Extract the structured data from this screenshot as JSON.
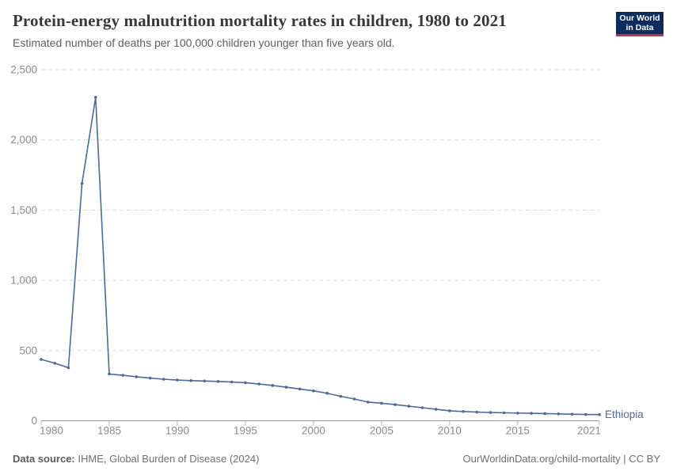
{
  "header": {
    "title": "Protein-energy malnutrition mortality rates in children, 1980 to 2021",
    "subtitle": "Estimated number of deaths per 100,000 children younger than five years old.",
    "logo": {
      "line1": "Our World",
      "line2": "in Data",
      "bg_color": "#0d2c5c",
      "accent_color": "#c0343c"
    }
  },
  "chart_data": {
    "type": "line",
    "title": "Protein-energy malnutrition mortality rates in children, 1980 to 2021",
    "subtitle": "Estimated number of deaths per 100,000 children younger than five years old.",
    "xlabel": "",
    "ylabel": "",
    "xlim": [
      1980,
      2021
    ],
    "ylim": [
      0,
      2500
    ],
    "grid": "horizontal-dashed",
    "legend_position": "end-of-line-label",
    "xticks": [
      1980,
      1985,
      1990,
      1995,
      2000,
      2005,
      2010,
      2015,
      2021
    ],
    "yticks": [
      0,
      500,
      1000,
      1500,
      2000,
      2500
    ],
    "ytick_labels": [
      "0",
      "500",
      "1,000",
      "1,500",
      "2,000",
      "2,500"
    ],
    "series": [
      {
        "name": "Ethiopia",
        "color": "#4c6a9c",
        "x": [
          1980,
          1981,
          1982,
          1983,
          1984,
          1985,
          1986,
          1987,
          1988,
          1989,
          1990,
          1991,
          1992,
          1993,
          1994,
          1995,
          1996,
          1997,
          1998,
          1999,
          2000,
          2001,
          2002,
          2003,
          2004,
          2005,
          2006,
          2007,
          2008,
          2009,
          2010,
          2011,
          2012,
          2013,
          2014,
          2015,
          2016,
          2017,
          2018,
          2019,
          2020,
          2021
        ],
        "values": [
          437,
          410,
          378,
          1690,
          2303,
          333,
          324,
          313,
          304,
          296,
          290,
          286,
          283,
          280,
          276,
          271,
          262,
          251,
          239,
          226,
          213,
          196,
          174,
          155,
          133,
          125,
          115,
          104,
          93,
          82,
          71,
          66,
          62,
          59,
          57,
          55,
          53,
          51,
          49,
          47,
          45,
          44
        ]
      }
    ]
  },
  "footer": {
    "source_label": "Data source:",
    "source_value": " IHME, Global Burden of Disease (2024)",
    "link": "OurWorldinData.org/child-mortality | CC BY"
  }
}
